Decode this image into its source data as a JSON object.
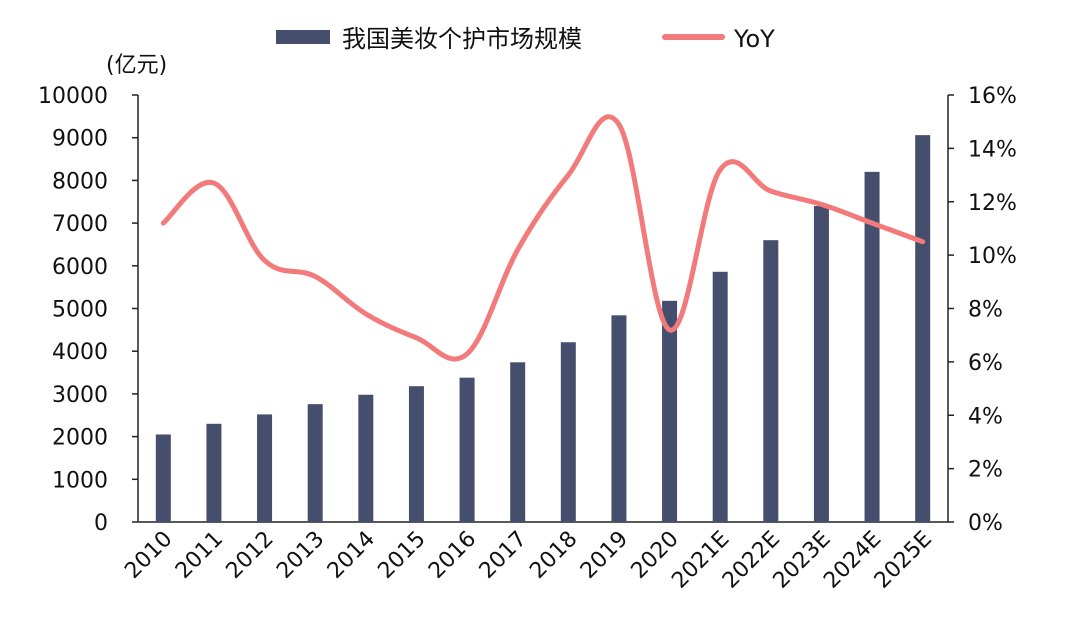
{
  "chart_data": {
    "type": "bar+line",
    "categories": [
      "2010",
      "2011",
      "2012",
      "2013",
      "2014",
      "2015",
      "2016",
      "2017",
      "2018",
      "2019",
      "2020",
      "2021E",
      "2022E",
      "2023E",
      "2024E",
      "2025E"
    ],
    "series": [
      {
        "name": "我国美妆个护市场规模",
        "type": "bar",
        "axis": "left",
        "values": [
          2050,
          2300,
          2520,
          2760,
          2980,
          3180,
          3380,
          3740,
          4210,
          4840,
          5180,
          5860,
          6600,
          7400,
          8200,
          9060
        ]
      },
      {
        "name": "YoY",
        "type": "line",
        "axis": "right",
        "values": [
          11.2,
          12.7,
          9.8,
          9.2,
          7.8,
          6.9,
          6.3,
          10.2,
          13.0,
          14.9,
          7.2,
          13.2,
          12.4,
          11.9,
          11.2,
          10.5
        ]
      }
    ],
    "y_left": {
      "unit_label": "(亿元)",
      "min": 0,
      "max": 10000,
      "ticks": [
        0,
        1000,
        2000,
        3000,
        4000,
        5000,
        6000,
        7000,
        8000,
        9000,
        10000
      ]
    },
    "y_right": {
      "min": 0,
      "max": 16,
      "ticks": [
        "0%",
        "2%",
        "4%",
        "6%",
        "8%",
        "10%",
        "12%",
        "14%",
        "16%"
      ]
    },
    "legend_position": "top",
    "grid": false,
    "colors": {
      "bar": "#454e6c",
      "line": "#f27a7a",
      "axis": "#222222"
    }
  }
}
